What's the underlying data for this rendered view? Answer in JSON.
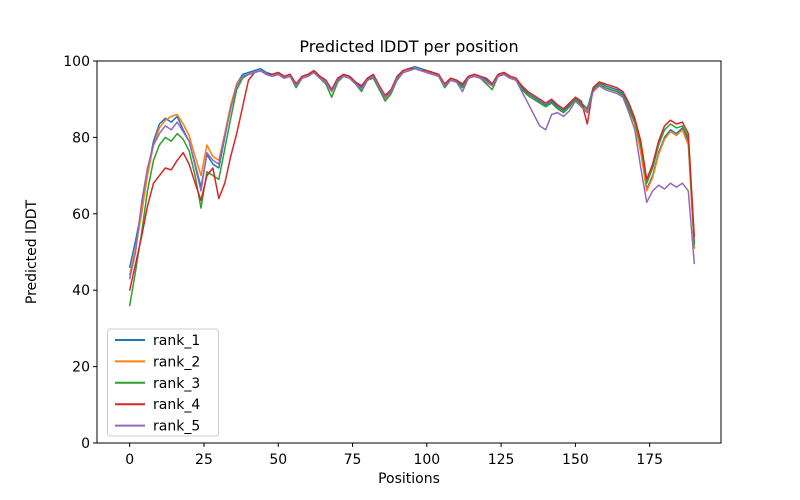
{
  "figure": {
    "background": "#ffffff",
    "spine_color": "#000000",
    "legend_border_color": "#cccccc"
  },
  "chart_data": {
    "type": "line",
    "title": "Predicted lDDT per position",
    "xlabel": "Positions",
    "ylabel": "Predicted lDDT",
    "xlim": [
      -11,
      199
    ],
    "ylim": [
      0,
      100
    ],
    "xticks": [
      0,
      25,
      50,
      75,
      100,
      125,
      150,
      175
    ],
    "yticks": [
      0,
      20,
      40,
      60,
      80,
      100
    ],
    "grid": false,
    "legend": {
      "position": "lower left",
      "entries": [
        "rank_1",
        "rank_2",
        "rank_3",
        "rank_4",
        "rank_5"
      ]
    },
    "x": [
      0,
      2,
      4,
      6,
      8,
      10,
      12,
      14,
      16,
      18,
      20,
      22,
      24,
      26,
      28,
      30,
      32,
      34,
      36,
      38,
      40,
      42,
      44,
      46,
      48,
      50,
      52,
      54,
      56,
      58,
      60,
      62,
      64,
      66,
      68,
      70,
      72,
      74,
      76,
      78,
      80,
      82,
      84,
      86,
      88,
      90,
      92,
      94,
      96,
      98,
      100,
      102,
      104,
      106,
      108,
      110,
      112,
      114,
      116,
      118,
      120,
      122,
      124,
      126,
      128,
      130,
      132,
      134,
      136,
      138,
      140,
      142,
      144,
      146,
      148,
      150,
      152,
      154,
      156,
      158,
      160,
      162,
      164,
      166,
      168,
      170,
      172,
      174,
      176,
      178,
      180,
      182,
      184,
      186,
      188,
      190
    ],
    "series": [
      {
        "name": "rank_1",
        "color": "#1f77b4",
        "values": [
          46,
          53,
          61,
          71,
          79,
          83.5,
          85,
          84,
          85.5,
          82,
          79,
          73,
          67,
          75.5,
          73,
          72,
          80,
          88,
          94,
          96.5,
          97,
          97.5,
          98,
          97,
          96.5,
          97,
          96,
          96.5,
          94,
          96,
          96.5,
          97.5,
          96,
          95,
          92.5,
          95.5,
          96.5,
          96,
          94.5,
          93,
          95.5,
          96.5,
          93.5,
          90.5,
          92.5,
          96,
          97.5,
          98,
          98.5,
          98,
          97.5,
          97,
          96.5,
          93.5,
          95.5,
          95,
          93.5,
          96,
          96.5,
          96,
          95,
          94,
          96.5,
          97,
          96,
          95.5,
          93,
          91.5,
          90.5,
          89.5,
          88.5,
          89.5,
          88,
          87,
          88.5,
          90.5,
          89,
          87.5,
          93,
          94.5,
          93.5,
          93,
          92.5,
          91.5,
          88,
          84,
          77,
          66.5,
          70,
          76,
          80,
          82,
          81,
          82.5,
          79,
          52
        ]
      },
      {
        "name": "rank_2",
        "color": "#ff7f0e",
        "values": [
          44,
          51,
          60,
          70,
          78,
          82.5,
          84.5,
          85.5,
          86,
          83.5,
          80.5,
          75,
          70,
          78,
          75,
          74,
          81,
          88.5,
          94,
          96,
          96.5,
          97,
          97.5,
          96.5,
          96,
          96.5,
          95.5,
          96,
          93.5,
          95.5,
          96,
          97,
          95.5,
          94.5,
          92,
          95,
          96,
          95.5,
          94,
          92.5,
          95,
          96,
          93,
          90,
          92,
          95.5,
          97,
          97.5,
          98,
          97.5,
          97,
          96.5,
          96,
          93,
          95,
          94.5,
          93,
          95.5,
          96,
          95.5,
          94.5,
          93.5,
          96,
          96.5,
          95.5,
          95,
          92.5,
          91,
          90,
          89,
          88,
          89,
          87.5,
          86.5,
          88,
          90,
          88.5,
          87,
          92.5,
          94,
          93,
          92.5,
          92,
          91,
          87.5,
          83.5,
          76,
          66,
          69.5,
          75.5,
          79.5,
          81.5,
          80.5,
          82,
          78,
          51
        ]
      },
      {
        "name": "rank_3",
        "color": "#2ca02c",
        "values": [
          36,
          45,
          55,
          66,
          74,
          78,
          80,
          79,
          81,
          79.5,
          76.5,
          70,
          61.5,
          71,
          70,
          69,
          77,
          85,
          92.5,
          95.5,
          96.5,
          97,
          97.5,
          96.5,
          96,
          96.5,
          95.5,
          96,
          93,
          95.5,
          96,
          97,
          95.5,
          94,
          90.5,
          94.5,
          96,
          95.5,
          94,
          92,
          95,
          95.5,
          92.5,
          89.5,
          91.5,
          95,
          97,
          97.5,
          98,
          97.5,
          97,
          96.5,
          96,
          93,
          95,
          94.5,
          93,
          95.5,
          96,
          95.5,
          94,
          92.5,
          96,
          96.5,
          95.5,
          95,
          92.5,
          91,
          90,
          89,
          88,
          89,
          87.5,
          86.5,
          88,
          90,
          88.5,
          87.5,
          92.5,
          94,
          93,
          92.5,
          92,
          91,
          87.5,
          84,
          78,
          68,
          72,
          78,
          82,
          83.5,
          82.5,
          83,
          80,
          52
        ]
      },
      {
        "name": "rank_4",
        "color": "#d62728",
        "values": [
          40,
          47,
          54,
          62,
          68,
          70,
          72,
          71.5,
          74,
          76,
          73,
          68,
          63.5,
          70,
          72,
          64,
          68,
          75,
          81,
          88,
          95,
          97,
          97.5,
          96.5,
          96.5,
          97,
          96,
          96.5,
          94,
          96,
          96.5,
          97.5,
          96,
          95,
          92.5,
          95.5,
          96.5,
          96,
          94.5,
          93.5,
          95.5,
          96.5,
          93.5,
          91,
          92.5,
          96,
          97.5,
          98,
          98,
          97.5,
          97.5,
          97,
          96.5,
          94,
          95.5,
          95,
          94,
          96,
          96.5,
          96,
          95.5,
          94,
          96.5,
          97,
          96,
          95.5,
          93.5,
          92,
          91,
          90,
          89,
          90,
          88.5,
          87.5,
          89,
          90.5,
          89.5,
          83.5,
          93,
          94.5,
          94,
          93.5,
          93,
          92,
          89,
          85,
          79,
          69,
          73,
          79,
          83,
          84.5,
          83.5,
          84,
          81,
          54
        ]
      },
      {
        "name": "rank_5",
        "color": "#9467bd",
        "values": [
          43,
          50,
          63,
          72,
          78,
          81,
          83,
          82,
          84,
          81.5,
          79,
          72.5,
          66,
          76,
          74,
          73,
          80.5,
          87.5,
          93.5,
          96,
          96.5,
          97,
          97.5,
          96.5,
          96,
          96.5,
          95.5,
          96,
          93.5,
          95.5,
          96,
          97,
          95.5,
          94.5,
          92,
          95,
          96,
          95.5,
          94,
          92.5,
          95,
          96,
          93,
          90.5,
          92,
          95.5,
          97,
          97.5,
          98,
          97.5,
          97,
          96.5,
          96,
          93.5,
          95,
          94.5,
          92,
          95.5,
          96,
          95.5,
          94.5,
          93.5,
          96,
          96.5,
          95.5,
          95,
          92,
          89,
          86,
          83,
          82,
          86,
          86.5,
          85.5,
          87,
          89.5,
          88,
          86.5,
          92,
          93.5,
          92.5,
          92,
          91.5,
          90.5,
          86.5,
          82,
          72,
          63,
          66,
          67.5,
          66.5,
          68,
          67,
          68,
          66,
          47
        ]
      }
    ]
  }
}
